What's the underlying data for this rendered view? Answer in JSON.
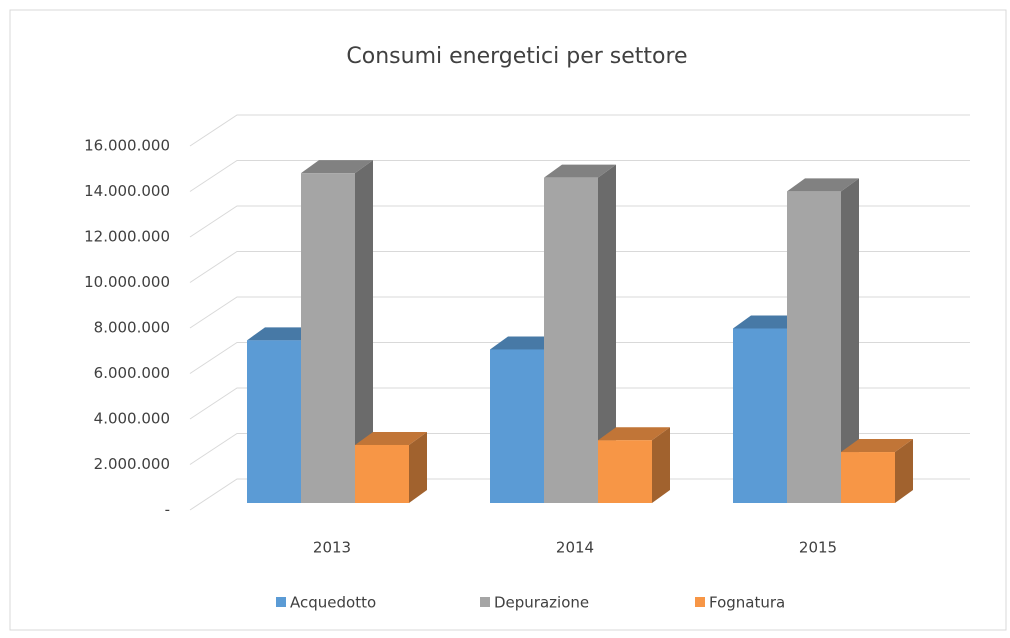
{
  "chart_data": {
    "type": "bar3d",
    "title": "Consumi energetici per settore",
    "categories": [
      "2013",
      "2014",
      "2015"
    ],
    "series": [
      {
        "name": "Acquedotto",
        "color": "#5b9bd5",
        "values": [
          7150000,
          6750000,
          7670000
        ]
      },
      {
        "name": "Depurazione",
        "color": "#a5a5a5",
        "values": [
          14500000,
          14300000,
          13700000
        ]
      },
      {
        "name": "Fognatura",
        "color": "#f79646",
        "values": [
          2550000,
          2760000,
          2240000
        ]
      }
    ],
    "ylim": [
      0,
      16000000
    ],
    "yticks": [
      {
        "value": 0,
        "label": "-"
      },
      {
        "value": 2000000,
        "label": "2.000.000"
      },
      {
        "value": 4000000,
        "label": "4.000.000"
      },
      {
        "value": 6000000,
        "label": "6.000.000"
      },
      {
        "value": 8000000,
        "label": "8.000.000"
      },
      {
        "value": 10000000,
        "label": "10.000.000"
      },
      {
        "value": 12000000,
        "label": "12.000.000"
      },
      {
        "value": 14000000,
        "label": "14.000.000"
      },
      {
        "value": 16000000,
        "label": "16.000.000"
      }
    ],
    "grid": true,
    "legend": "bottom"
  }
}
